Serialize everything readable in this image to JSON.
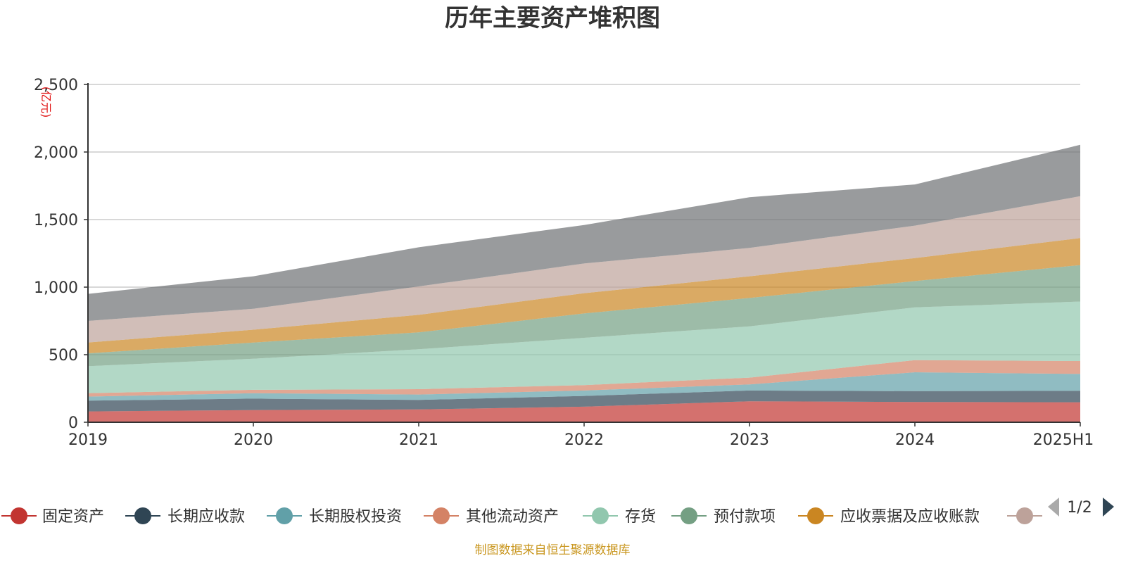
{
  "chart_data": {
    "type": "area",
    "stacked": true,
    "title": "历年主要资产堆积图",
    "ylabel": "(亿元)",
    "xlabel": "",
    "categories": [
      "2019",
      "2020",
      "2021",
      "2022",
      "2023",
      "2024",
      "2025H1"
    ],
    "ylim": [
      0,
      2500
    ],
    "yticks": [
      "0",
      "500",
      "1,000",
      "1,500",
      "2,000",
      "2,500"
    ],
    "grid": true,
    "series": [
      {
        "name": "固定资产",
        "color": "#c23531",
        "values": [
          80,
          90,
          95,
          115,
          155,
          150,
          148
        ]
      },
      {
        "name": "长期应收款",
        "color": "#2f4554",
        "values": [
          80,
          85,
          70,
          80,
          80,
          80,
          85
        ]
      },
      {
        "name": "长期股权投资",
        "color": "#61a0a8",
        "values": [
          30,
          40,
          40,
          40,
          45,
          140,
          125
        ]
      },
      {
        "name": "其他流动资产",
        "color": "#d48265",
        "values": [
          25,
          25,
          40,
          40,
          50,
          90,
          95
        ]
      },
      {
        "name": "存货",
        "color": "#91c7ae",
        "values": [
          200,
          230,
          295,
          350,
          380,
          390,
          440
        ]
      },
      {
        "name": "预付款项",
        "color": "#749f83",
        "values": [
          95,
          120,
          125,
          180,
          210,
          195,
          270
        ]
      },
      {
        "name": "应收票据及应收账款",
        "color": "#ca8622",
        "values": [
          80,
          95,
          130,
          150,
          160,
          170,
          200
        ]
      },
      {
        "name": "",
        "color": "#bda29a",
        "values": [
          160,
          155,
          210,
          220,
          210,
          240,
          310
        ]
      },
      {
        "name": "",
        "color": "#6e7074",
        "values": [
          200,
          240,
          290,
          285,
          375,
          305,
          380
        ]
      }
    ],
    "legend": {
      "position": "bottom",
      "page": "1/2"
    }
  },
  "source_note": "制图数据来自恒生聚源数据库"
}
